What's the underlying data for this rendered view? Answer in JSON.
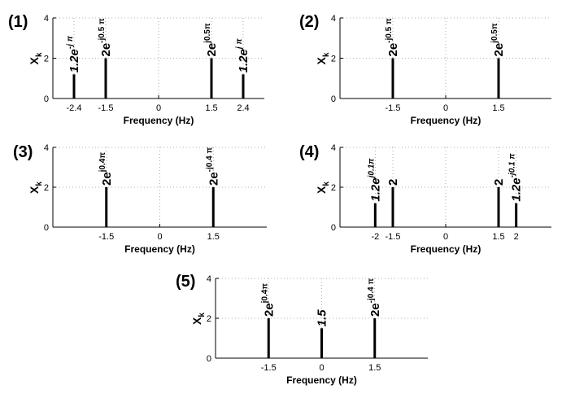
{
  "chart_data": [
    {
      "type": "bar",
      "title": "(1)",
      "xlabel": "Frequency  (Hz)",
      "ylabel": "X",
      "ylabel_sub": "k",
      "xlim": [
        -3.0,
        3.0
      ],
      "ylim": [
        0,
        4
      ],
      "yticks": [
        0,
        2,
        4
      ],
      "xticks": [
        "-2.4",
        "-1.5",
        "0",
        "1.5",
        "2.4"
      ],
      "xtick_values": [
        -2.4,
        -1.5,
        0,
        1.5,
        2.4
      ],
      "grid": true,
      "points": [
        {
          "x": -2.4,
          "y": 1.2,
          "label_base": "1.2e",
          "label_exp": "-j π",
          "italic": true
        },
        {
          "x": -1.5,
          "y": 2.0,
          "label_base": "2e",
          "label_exp": "-j0.5 π",
          "italic": false
        },
        {
          "x": 1.5,
          "y": 2.0,
          "label_base": "2e",
          "label_exp": "j0.5π",
          "italic": false
        },
        {
          "x": 2.4,
          "y": 1.2,
          "label_base": "1.2e",
          "label_exp": "j π",
          "italic": true
        }
      ]
    },
    {
      "type": "bar",
      "title": "(2)",
      "xlabel": "Frequency  (Hz)",
      "ylabel": "X",
      "ylabel_sub": "k",
      "xlim": [
        -3.0,
        3.0
      ],
      "ylim": [
        0,
        4
      ],
      "yticks": [
        0,
        2,
        4
      ],
      "xticks": [
        "-1.5",
        "0",
        "1.5"
      ],
      "xtick_values": [
        -1.5,
        0,
        1.5
      ],
      "grid": true,
      "points": [
        {
          "x": -1.5,
          "y": 2.0,
          "label_base": "2e",
          "label_exp": "-j0.5 π",
          "italic": false
        },
        {
          "x": 1.5,
          "y": 2.0,
          "label_base": "2e",
          "label_exp": "j0.5π",
          "italic": false
        }
      ]
    },
    {
      "type": "bar",
      "title": "(3)",
      "xlabel": "Frequency  (Hz)",
      "ylabel": "X",
      "ylabel_sub": "k",
      "xlim": [
        -3.0,
        3.0
      ],
      "ylim": [
        0,
        4
      ],
      "yticks": [
        0,
        2,
        4
      ],
      "xticks": [
        "-1.5",
        "0",
        "1.5"
      ],
      "xtick_values": [
        -1.5,
        0,
        1.5
      ],
      "grid": true,
      "points": [
        {
          "x": -1.5,
          "y": 2.0,
          "label_base": "2e",
          "label_exp": "j0.4π",
          "italic": false
        },
        {
          "x": 1.5,
          "y": 2.0,
          "label_base": "2e",
          "label_exp": "-j0.4 π",
          "italic": false
        }
      ]
    },
    {
      "type": "bar",
      "title": "(4)",
      "xlabel": "Frequency  (Hz)",
      "ylabel": "X",
      "ylabel_sub": "k",
      "xlim": [
        -3.0,
        3.0
      ],
      "ylim": [
        0,
        4
      ],
      "yticks": [
        0,
        2,
        4
      ],
      "xticks": [
        "-2",
        "-1.5",
        "0",
        "1.5",
        "2"
      ],
      "xtick_values": [
        -2,
        -1.5,
        0,
        1.5,
        2
      ],
      "grid": true,
      "points": [
        {
          "x": -2.0,
          "y": 1.2,
          "label_base": "1.2e",
          "label_exp": "j0.1π",
          "italic": true
        },
        {
          "x": -1.5,
          "y": 2.0,
          "label_base": "2",
          "label_exp": "",
          "italic": false
        },
        {
          "x": 1.5,
          "y": 2.0,
          "label_base": "2",
          "label_exp": "",
          "italic": false
        },
        {
          "x": 2.0,
          "y": 1.2,
          "label_base": "1.2e",
          "label_exp": "-j0.1 π",
          "italic": true
        }
      ]
    },
    {
      "type": "bar",
      "title": "(5)",
      "xlabel": "Frequency  (Hz)",
      "ylabel": "X",
      "ylabel_sub": "k",
      "xlim": [
        -3.0,
        3.0
      ],
      "ylim": [
        0,
        4
      ],
      "yticks": [
        0,
        2,
        4
      ],
      "xticks": [
        "-1.5",
        "0",
        "1.5"
      ],
      "xtick_values": [
        -1.5,
        0,
        1.5
      ],
      "grid": true,
      "points": [
        {
          "x": -1.5,
          "y": 2.0,
          "label_base": "2e",
          "label_exp": "j0.4π",
          "italic": false
        },
        {
          "x": 0,
          "y": 1.5,
          "label_base": "1.5",
          "label_exp": "",
          "italic": true
        },
        {
          "x": 1.5,
          "y": 2.0,
          "label_base": "2e",
          "label_exp": "-j0.4 π",
          "italic": false
        }
      ]
    }
  ]
}
